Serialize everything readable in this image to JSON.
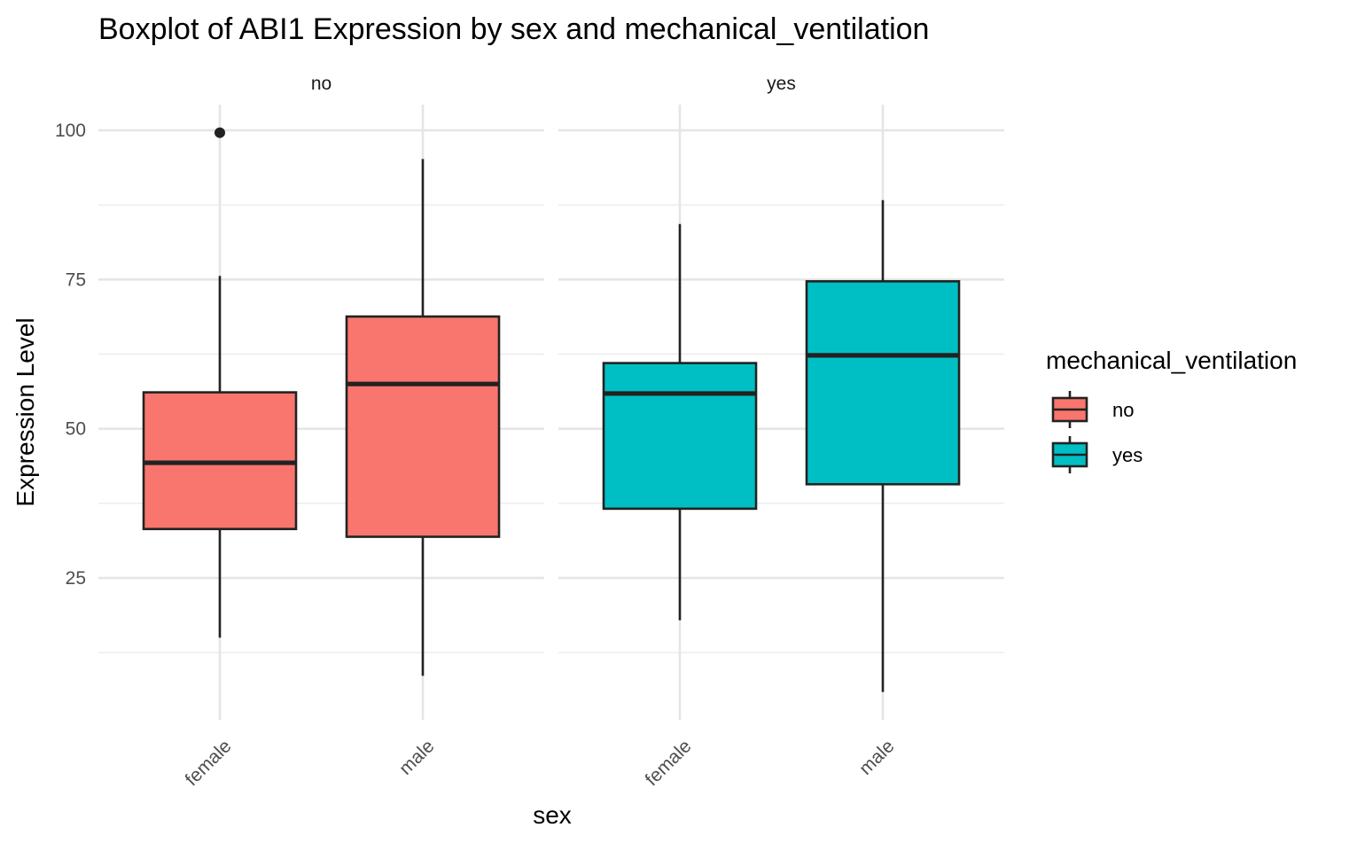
{
  "chart_data": {
    "type": "boxplot",
    "title": "Boxplot of ABI1 Expression by sex and mechanical_ventilation",
    "xlabel": "sex",
    "ylabel": "Expression Level",
    "ylim": [
      0,
      104
    ],
    "y_ticks": [
      25,
      50,
      75,
      100
    ],
    "y_tick_labels": [
      "25",
      "50",
      "75",
      "100"
    ],
    "grid": true,
    "legend": {
      "title": "mechanical_ventilation",
      "position": "right",
      "entries": [
        {
          "label": "no",
          "color": "#F8766D"
        },
        {
          "label": "yes",
          "color": "#00BFC4"
        }
      ]
    },
    "facets": [
      {
        "label": "no",
        "fill": "#F8766D",
        "boxes": [
          {
            "category": "female",
            "whisker_low": 15,
            "q1": 33.2,
            "median": 44.3,
            "q3": 56.1,
            "whisker_high": 75.6,
            "outliers": [
              99.6
            ]
          },
          {
            "category": "male",
            "whisker_low": 8.6,
            "q1": 31.9,
            "median": 57.5,
            "q3": 68.8,
            "whisker_high": 95.2,
            "outliers": []
          }
        ]
      },
      {
        "label": "yes",
        "fill": "#00BFC4",
        "boxes": [
          {
            "category": "female",
            "whisker_low": 17.9,
            "q1": 36.6,
            "median": 55.9,
            "q3": 61,
            "whisker_high": 84.3,
            "outliers": []
          },
          {
            "category": "male",
            "whisker_low": 5.9,
            "q1": 40.7,
            "median": 62.3,
            "q3": 74.7,
            "whisker_high": 88.3,
            "outliers": []
          }
        ]
      }
    ]
  },
  "colors": {
    "no": "#F8766D",
    "yes": "#00BFC4",
    "box_outline": "#222222",
    "grid": "#E5E5E5"
  }
}
